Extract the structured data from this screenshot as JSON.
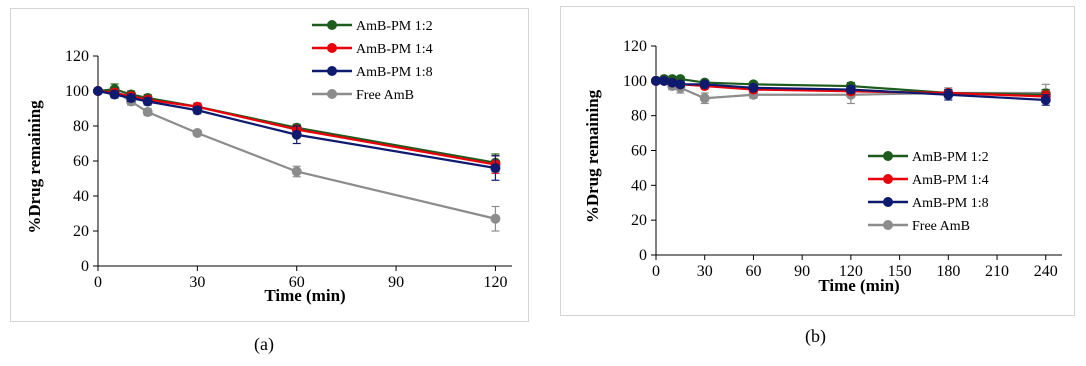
{
  "captions": {
    "a": "(a)",
    "b": "(b)"
  },
  "colors": {
    "series": [
      "#1e5c1e",
      "#e8000b",
      "#0d1a6e",
      "#8c8c8c"
    ]
  },
  "chart_data": [
    {
      "type": "line",
      "panel": "a",
      "xlabel": "Time (min)",
      "ylabel": "%Drug remaining",
      "xlim": [
        0,
        125
      ],
      "ylim": [
        0,
        120
      ],
      "xticks": [
        0,
        30,
        60,
        90,
        120
      ],
      "yticks": [
        0,
        20,
        40,
        60,
        80,
        100,
        120
      ],
      "grid": false,
      "legend_position": "top-right",
      "x": [
        0,
        5,
        10,
        15,
        30,
        60,
        120
      ],
      "series": [
        {
          "name": "AmB-PM 1:2",
          "values": [
            100,
            101,
            98,
            96,
            91,
            79,
            59
          ],
          "errors": [
            0,
            3,
            2,
            2,
            2,
            2,
            5
          ]
        },
        {
          "name": "AmB-PM 1:4",
          "values": [
            100,
            99,
            97,
            95,
            91,
            78,
            58
          ],
          "errors": [
            0,
            2,
            2,
            2,
            2,
            2,
            5
          ]
        },
        {
          "name": "AmB-PM 1:8",
          "values": [
            100,
            98,
            96,
            94,
            89,
            75,
            56
          ],
          "errors": [
            0,
            2,
            2,
            2,
            2,
            5,
            7
          ]
        },
        {
          "name": "Free AmB",
          "values": [
            100,
            100,
            94,
            88,
            76,
            54,
            27
          ],
          "errors": [
            0,
            2,
            2,
            2,
            1,
            3,
            7
          ]
        }
      ]
    },
    {
      "type": "line",
      "panel": "b",
      "xlabel": "Time (min)",
      "ylabel": "%Drug remaining",
      "xlim": [
        0,
        250
      ],
      "ylim": [
        0,
        120
      ],
      "xticks": [
        0,
        30,
        60,
        90,
        120,
        150,
        180,
        210,
        240
      ],
      "yticks": [
        0,
        20,
        40,
        60,
        80,
        100,
        120
      ],
      "grid": false,
      "legend_position": "bottom-right",
      "x": [
        0,
        5,
        10,
        15,
        30,
        60,
        120,
        180,
        240
      ],
      "series": [
        {
          "name": "AmB-PM 1:2",
          "values": [
            100,
            101,
            101,
            101,
            99,
            98,
            97,
            93,
            92
          ],
          "errors": [
            0,
            1,
            1,
            1,
            1,
            1,
            2,
            2,
            3
          ]
        },
        {
          "name": "AmB-PM 1:4",
          "values": [
            100,
            100,
            99,
            98,
            97,
            95,
            94,
            93,
            91
          ],
          "errors": [
            0,
            1,
            1,
            1,
            1,
            1,
            2,
            2,
            3
          ]
        },
        {
          "name": "AmB-PM 1:8",
          "values": [
            100,
            100,
            99,
            98,
            98,
            96,
            95,
            92,
            89
          ],
          "errors": [
            0,
            1,
            1,
            1,
            1,
            1,
            2,
            3,
            3
          ]
        },
        {
          "name": "Free AmB",
          "values": [
            100,
            101,
            97,
            96,
            90,
            92,
            92,
            93,
            93
          ],
          "errors": [
            0,
            1,
            2,
            3,
            3,
            2,
            5,
            3,
            5
          ]
        }
      ]
    }
  ]
}
